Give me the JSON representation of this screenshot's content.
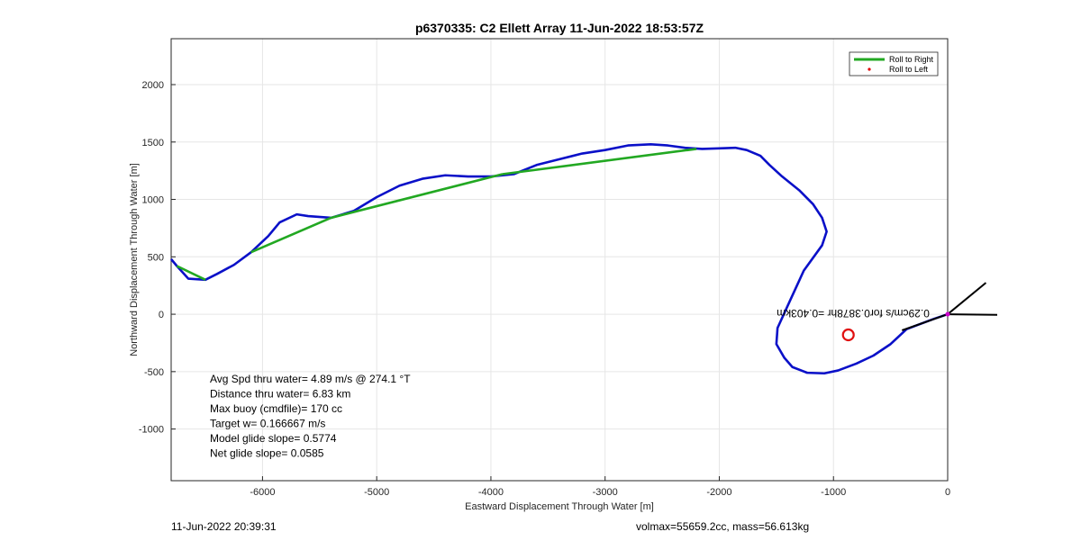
{
  "chart_data": {
    "type": "line",
    "title": "p6370335: C2 Ellett Array 11-Jun-2022 18:53:57Z",
    "xlabel": "Eastward Displacement Through Water [m]",
    "ylabel": "Northward Displacement Through Water [m]",
    "xlim": [
      -6800,
      0
    ],
    "ylim": [
      -1450,
      2400
    ],
    "xticks": [
      -6000,
      -5000,
      -4000,
      -3000,
      -2000,
      -1000,
      0
    ],
    "yticks": [
      -1000,
      -500,
      0,
      500,
      1000,
      1500,
      2000
    ],
    "grid": true,
    "legend_position": "top-right",
    "legend": [
      "Roll to Right",
      "Roll to Left"
    ],
    "colors": {
      "track": "#0a10c8",
      "roll_right": "#22a822",
      "roll_left": "#e00000",
      "target": "#e01010",
      "arrow": "#000000",
      "end_marker": "#cc00cc"
    },
    "series": [
      {
        "name": "track",
        "x": [
          0,
          -120,
          -360,
          -500,
          -650,
          -800,
          -960,
          -1080,
          -1230,
          -1360,
          -1430,
          -1500,
          -1490,
          -1380,
          -1260,
          -1100,
          -1060,
          -1100,
          -1180,
          -1300,
          -1450,
          -1560,
          -1640,
          -1760,
          -1860,
          -2000,
          -2150,
          -2300,
          -2450,
          -2600,
          -2800,
          -3000,
          -3200,
          -3400,
          -3600,
          -3800,
          -4000,
          -4200,
          -4400,
          -4600,
          -4800,
          -5000,
          -5200,
          -5400,
          -5600,
          -5700,
          -5850,
          -5950,
          -6100,
          -6250,
          -6400,
          -6500,
          -6650,
          -6750,
          -6800
        ],
        "y": [
          0,
          -40,
          -130,
          -260,
          -360,
          -430,
          -490,
          -515,
          -510,
          -460,
          -380,
          -260,
          -120,
          120,
          380,
          600,
          720,
          840,
          960,
          1080,
          1200,
          1300,
          1380,
          1430,
          1450,
          1445,
          1440,
          1450,
          1470,
          1480,
          1470,
          1430,
          1400,
          1350,
          1300,
          1220,
          1200,
          1200,
          1210,
          1180,
          1120,
          1020,
          900,
          840,
          855,
          870,
          800,
          680,
          540,
          430,
          350,
          300,
          310,
          420,
          480
        ]
      },
      {
        "name": "Roll to Right",
        "segments": [
          {
            "x": [
              -2200,
              -3900
            ],
            "y": [
              1440,
              1220
            ]
          },
          {
            "x": [
              -3900,
              -5400
            ],
            "y": [
              1220,
              840
            ]
          },
          {
            "x": [
              -5400,
              -6100
            ],
            "y": [
              840,
              540
            ]
          },
          {
            "x": [
              -6500,
              -6750
            ],
            "y": [
              300,
              420
            ]
          }
        ]
      }
    ],
    "annotations": {
      "stats": [
        "Avg Spd thru water=  4.89 m/s @ 274.1 °T",
        "Distance thru water=  6.83 km",
        "Max buoy (cmdfile)= 170 cc",
        "Target w= 0.166667 m/s",
        "Model glide slope= 0.5774",
        "Net glide slope= 0.0585"
      ],
      "current_label": "0.29cm/s for0.3878hr =0.403km",
      "target_circle": {
        "x": -870,
        "y": -180
      },
      "arrow_from": {
        "x": 0,
        "y": 0
      },
      "arrow_to": {
        "x": -400,
        "y": -140
      }
    },
    "footer_left": "11-Jun-2022 20:39:31",
    "footer_right": "volmax=55659.2cc, mass=56.613kg"
  }
}
